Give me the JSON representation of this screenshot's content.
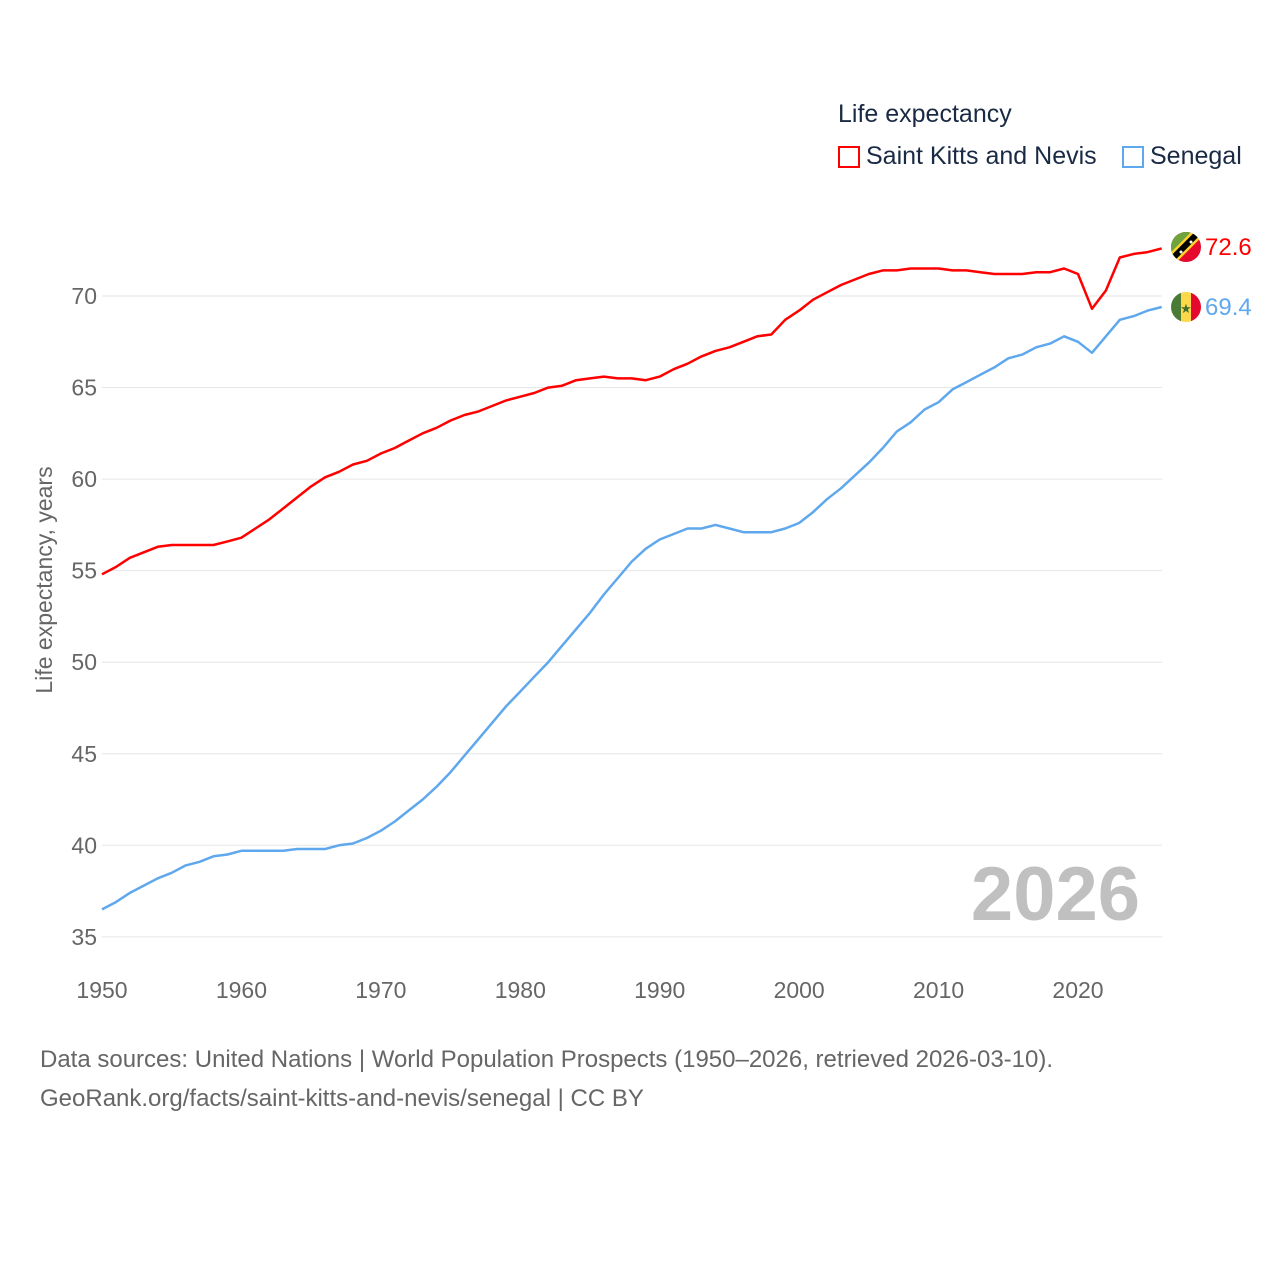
{
  "chart_data": {
    "type": "line",
    "title": "Life expectancy",
    "xlabel": "",
    "ylabel": "Life expectancy, years",
    "xlim": [
      1950,
      2026
    ],
    "ylim": [
      35,
      73.5
    ],
    "x_ticks": [
      "1950",
      "1960",
      "1970",
      "1980",
      "1990",
      "2000",
      "2010",
      "2020"
    ],
    "y_ticks": [
      "35",
      "40",
      "45",
      "50",
      "55",
      "60",
      "65",
      "70"
    ],
    "grid": true,
    "legend_position": "top-right",
    "year_label": "2026",
    "x": [
      1950,
      1951,
      1952,
      1953,
      1954,
      1955,
      1956,
      1957,
      1958,
      1959,
      1960,
      1961,
      1962,
      1963,
      1964,
      1965,
      1966,
      1967,
      1968,
      1969,
      1970,
      1971,
      1972,
      1973,
      1974,
      1975,
      1976,
      1977,
      1978,
      1979,
      1980,
      1981,
      1982,
      1983,
      1984,
      1985,
      1986,
      1987,
      1988,
      1989,
      1990,
      1991,
      1992,
      1993,
      1994,
      1995,
      1996,
      1997,
      1998,
      1999,
      2000,
      2001,
      2002,
      2003,
      2004,
      2005,
      2006,
      2007,
      2008,
      2009,
      2010,
      2011,
      2012,
      2013,
      2014,
      2015,
      2016,
      2017,
      2018,
      2019,
      2020,
      2021,
      2022,
      2023,
      2024,
      2025,
      2026
    ],
    "series": [
      {
        "name": "Saint Kitts and Nevis",
        "color": "#ff0000",
        "end_label": "72.6",
        "values": [
          54.8,
          55.2,
          55.7,
          56.0,
          56.3,
          56.4,
          56.4,
          56.4,
          56.4,
          56.6,
          56.8,
          57.3,
          57.8,
          58.4,
          59.0,
          59.6,
          60.1,
          60.4,
          60.8,
          61.0,
          61.4,
          61.7,
          62.1,
          62.5,
          62.8,
          63.2,
          63.5,
          63.7,
          64.0,
          64.3,
          64.5,
          64.7,
          65.0,
          65.1,
          65.4,
          65.5,
          65.6,
          65.5,
          65.5,
          65.4,
          65.6,
          66.0,
          66.3,
          66.7,
          67.0,
          67.2,
          67.5,
          67.8,
          67.9,
          68.7,
          69.2,
          69.8,
          70.2,
          70.6,
          70.9,
          71.2,
          71.4,
          71.4,
          71.5,
          71.5,
          71.5,
          71.4,
          71.4,
          71.3,
          71.2,
          71.2,
          71.2,
          71.3,
          71.3,
          71.5,
          71.2,
          69.3,
          70.3,
          72.1,
          72.3,
          72.4,
          72.6
        ]
      },
      {
        "name": "Senegal",
        "color": "#5fa8ee",
        "end_label": "69.4",
        "values": [
          36.5,
          36.9,
          37.4,
          37.8,
          38.2,
          38.5,
          38.9,
          39.1,
          39.4,
          39.5,
          39.7,
          39.7,
          39.7,
          39.7,
          39.8,
          39.8,
          39.8,
          40.0,
          40.1,
          40.4,
          40.8,
          41.3,
          41.9,
          42.5,
          43.2,
          44.0,
          44.9,
          45.8,
          46.7,
          47.6,
          48.4,
          49.2,
          50.0,
          50.9,
          51.8,
          52.7,
          53.7,
          54.6,
          55.5,
          56.2,
          56.7,
          57.0,
          57.3,
          57.3,
          57.5,
          57.3,
          57.1,
          57.1,
          57.1,
          57.3,
          57.6,
          58.2,
          58.9,
          59.5,
          60.2,
          60.9,
          61.7,
          62.6,
          63.1,
          63.8,
          64.2,
          64.9,
          65.3,
          65.7,
          66.1,
          66.6,
          66.8,
          67.2,
          67.4,
          67.8,
          67.5,
          66.9,
          67.8,
          68.7,
          68.9,
          69.2,
          69.4
        ]
      }
    ]
  },
  "footer": {
    "line1": "Data sources: United Nations | World Population Prospects (1950–2026, retrieved 2026-03-10).",
    "line2": "GeoRank.org/facts/saint-kitts-and-nevis/senegal | CC BY"
  }
}
